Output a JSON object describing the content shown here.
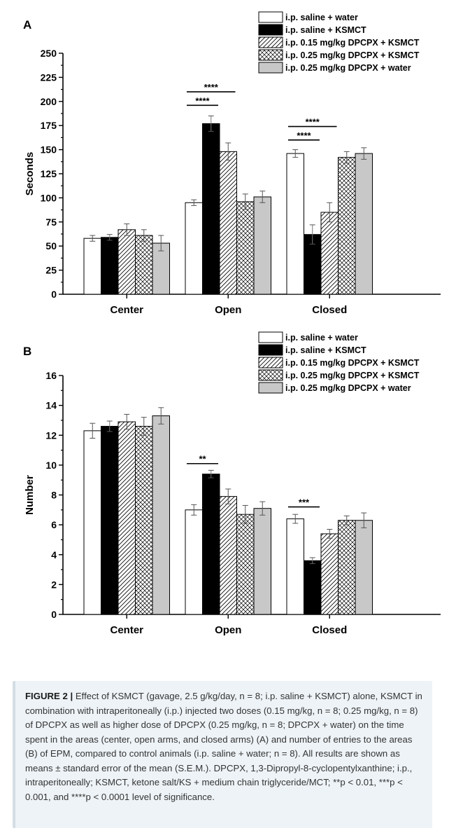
{
  "chart_data": [
    {
      "panel_label": "A",
      "type": "bar",
      "ylabel": "Seconds",
      "ylim": [
        0,
        250
      ],
      "yticks": [
        0,
        25,
        50,
        75,
        100,
        125,
        150,
        175,
        200,
        225,
        250
      ],
      "categories": [
        "Center",
        "Open",
        "Closed"
      ],
      "series": [
        {
          "name": "i.p. saline + water",
          "values": [
            58,
            95,
            146
          ],
          "errors": [
            3,
            3,
            4
          ]
        },
        {
          "name": "i.p. saline + KSMCT",
          "values": [
            59,
            177,
            62
          ],
          "errors": [
            3,
            8,
            10
          ]
        },
        {
          "name": "i.p. 0.15 mg/kg DPCPX + KSMCT",
          "values": [
            67,
            148,
            85
          ],
          "errors": [
            6,
            9,
            10
          ]
        },
        {
          "name": "i.p. 0.25 mg/kg DPCPX + KSMCT",
          "values": [
            61,
            96,
            142
          ],
          "errors": [
            6,
            8,
            6
          ]
        },
        {
          "name": "i.p. 0.25 mg/kg DPCPX + water",
          "values": [
            53,
            101,
            146
          ],
          "errors": [
            8,
            6,
            6
          ]
        }
      ],
      "annotations": [
        {
          "category": 1,
          "from": 0,
          "to": 1,
          "label": "****",
          "y": 196
        },
        {
          "category": 1,
          "from": 0,
          "to": 2,
          "label": "****",
          "y": 210
        },
        {
          "category": 2,
          "from": 0,
          "to": 1,
          "label": "****",
          "y": 160
        },
        {
          "category": 2,
          "from": 0,
          "to": 2,
          "label": "****",
          "y": 174
        }
      ]
    },
    {
      "panel_label": "B",
      "type": "bar",
      "ylabel": "Number",
      "ylim": [
        0,
        16
      ],
      "yticks": [
        0,
        2,
        4,
        6,
        8,
        10,
        12,
        14,
        16
      ],
      "categories": [
        "Center",
        "Open",
        "Closed"
      ],
      "series": [
        {
          "name": "i.p. saline + water",
          "values": [
            12.3,
            7.0,
            6.4
          ],
          "errors": [
            0.5,
            0.35,
            0.3
          ]
        },
        {
          "name": "i.p. saline + KSMCT",
          "values": [
            12.6,
            9.4,
            3.6
          ],
          "errors": [
            0.35,
            0.25,
            0.2
          ]
        },
        {
          "name": "i.p. 0.15 mg/kg DPCPX + KSMCT",
          "values": [
            12.9,
            7.9,
            5.4
          ],
          "errors": [
            0.5,
            0.5,
            0.3
          ]
        },
        {
          "name": "i.p. 0.25 mg/kg DPCPX + KSMCT",
          "values": [
            12.6,
            6.7,
            6.3
          ],
          "errors": [
            0.6,
            0.6,
            0.3
          ]
        },
        {
          "name": "i.p. 0.25 mg/kg DPCPX + water",
          "values": [
            13.3,
            7.1,
            6.3
          ],
          "errors": [
            0.55,
            0.45,
            0.5
          ]
        }
      ],
      "annotations": [
        {
          "category": 1,
          "from": 0,
          "to": 1,
          "label": "**",
          "y": 10.1
        },
        {
          "category": 2,
          "from": 0,
          "to": 1,
          "label": "***",
          "y": 7.2
        }
      ]
    }
  ],
  "caption": {
    "prefix": "FIGURE 2 |",
    "text": "Effect of KSMCT (gavage, 2.5 g/kg/day, n = 8; i.p. saline + KSMCT) alone, KSMCT in combination with intraperitoneally (i.p.) injected two doses (0.15 mg/kg, n = 8; 0.25 mg/kg, n = 8) of DPCPX as well as higher dose of DPCPX (0.25 mg/kg, n = 8; DPCPX + water) on the time spent in the areas (center, open arms, and closed arms) (A) and number of entries to the areas (B) of EPM, compared to control animals (i.p. saline + water; n = 8). All results are shown as means ± standard error of the mean (S.E.M.). DPCPX, 1,3-Dipropyl-8-cyclopentylxanthine; i.p., intraperitoneally; KSMCT, ketone salt/KS + medium chain triglyceride/MCT; **p < 0.01, ***p < 0.001, and ****p < 0.0001 level of significance."
  }
}
